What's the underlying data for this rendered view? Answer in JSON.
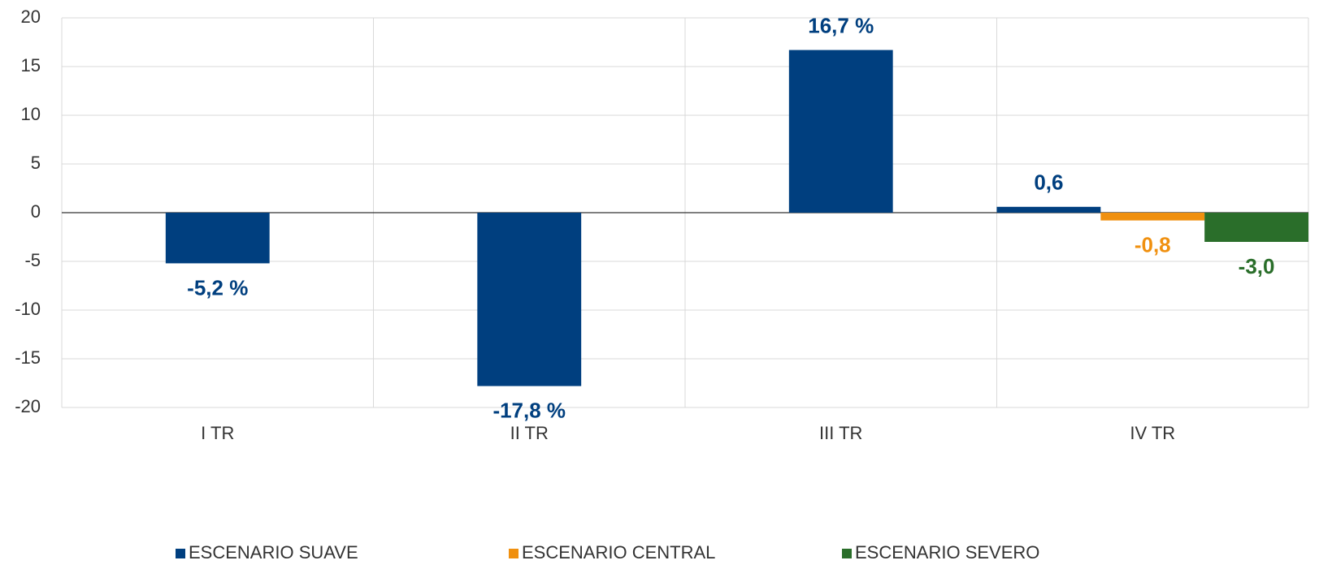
{
  "chart_data": {
    "type": "bar",
    "categories": [
      "I TR",
      "II TR",
      "III TR",
      "IV TR"
    ],
    "series": [
      {
        "name": "ESCENARIO SUAVE",
        "color": "#003f7f",
        "values": [
          -5.2,
          -17.8,
          16.7,
          0.6
        ],
        "value_labels": [
          "-5,2 %",
          "-17,8 %",
          "16,7 %",
          "0,6"
        ]
      },
      {
        "name": "ESCENARIO CENTRAL",
        "color": "#f0900f",
        "values": [
          null,
          null,
          null,
          -0.8
        ],
        "value_labels": [
          null,
          null,
          null,
          "-0,8"
        ]
      },
      {
        "name": "ESCENARIO SEVERO",
        "color": "#2a6e2a",
        "values": [
          null,
          null,
          null,
          -3.0
        ],
        "value_labels": [
          null,
          null,
          null,
          "-3,0"
        ]
      }
    ],
    "ylim": [
      -20,
      20
    ],
    "yticks": [
      -20,
      -15,
      -10,
      -5,
      0,
      5,
      10,
      15,
      20
    ],
    "grid": true,
    "legend": "bottom"
  }
}
